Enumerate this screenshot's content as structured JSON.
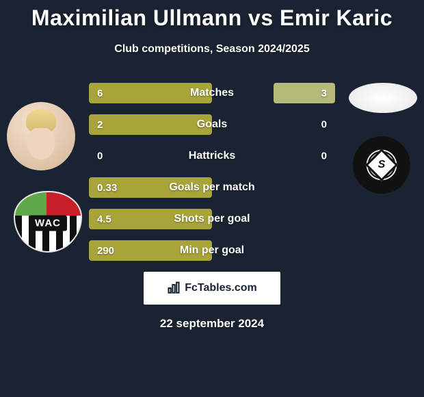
{
  "title": "Maximilian Ullmann vs Emir Karic",
  "subtitle": "Club competitions, Season 2024/2025",
  "date": "22 september 2024",
  "attribution": "FcTables.com",
  "colors": {
    "background": "#1a2332",
    "bar_left": "#a8a43a",
    "bar_right": "#b5b979",
    "text": "#ffffff"
  },
  "player_left": {
    "crest_text": "WAC"
  },
  "stats": [
    {
      "label": "Matches",
      "left_val": "6",
      "right_val": "3",
      "left_pct": 100,
      "right_pct": 50
    },
    {
      "label": "Goals",
      "left_val": "2",
      "right_val": "0",
      "left_pct": 100,
      "right_pct": 0
    },
    {
      "label": "Hattricks",
      "left_val": "0",
      "right_val": "0",
      "left_pct": 0,
      "right_pct": 0
    },
    {
      "label": "Goals per match",
      "left_val": "0.33",
      "right_val": "",
      "left_pct": 100,
      "right_pct": 0
    },
    {
      "label": "Shots per goal",
      "left_val": "4.5",
      "right_val": "",
      "left_pct": 100,
      "right_pct": 0
    },
    {
      "label": "Min per goal",
      "left_val": "290",
      "right_val": "",
      "left_pct": 100,
      "right_pct": 0
    }
  ]
}
